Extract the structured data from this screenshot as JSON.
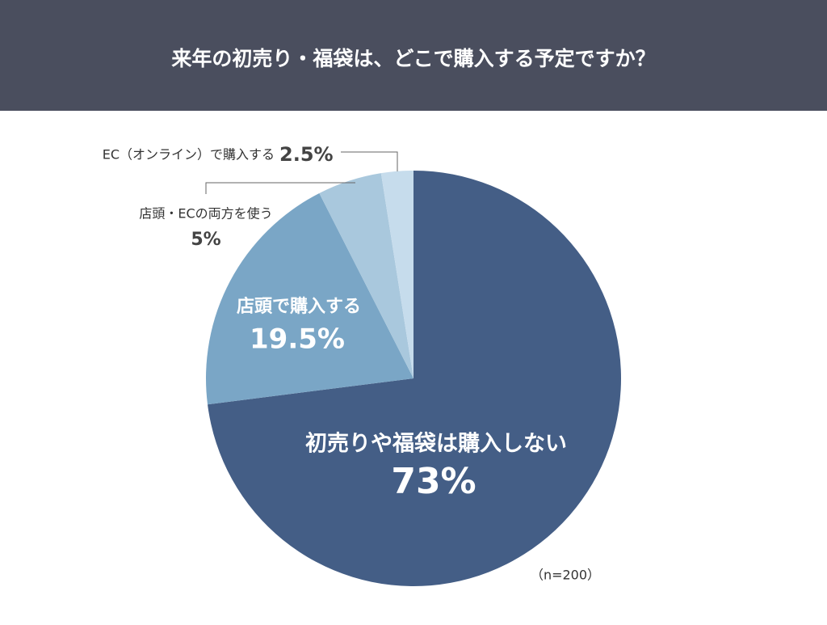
{
  "chart_data": {
    "type": "pie",
    "title": "来年の初売り・福袋は、どこで購入する予定ですか？",
    "categories": [
      "初売りや福袋は購入しない",
      "店頭で購入する",
      "店頭・ECの両方を使う",
      "EC（オンライン）で購入する"
    ],
    "values": [
      73,
      19.5,
      5,
      2.5
    ],
    "value_labels": [
      "73%",
      "19.5%",
      "5%",
      "2.5%"
    ],
    "colors": [
      "#445e86",
      "#7aa6c6",
      "#a9c8dd",
      "#c6dcec"
    ],
    "note": "（n=200）"
  }
}
